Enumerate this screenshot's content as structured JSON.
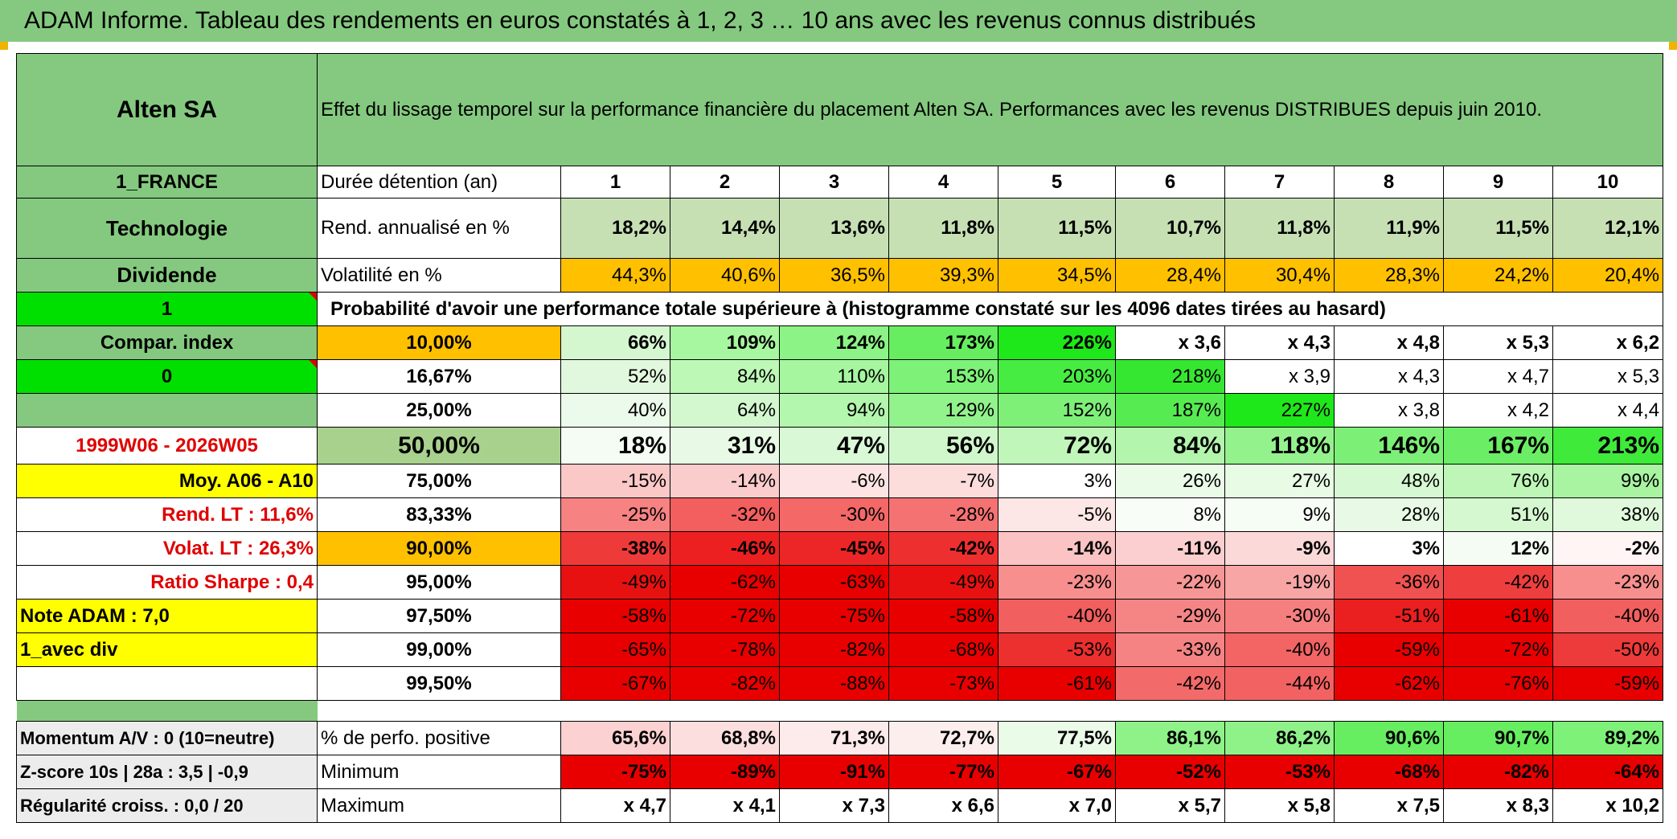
{
  "header": {
    "title": "ADAM Informe. Tableau des rendements en euros constatés à 1, 2, 3 … 10 ans avec les revenus connus distribués"
  },
  "side": {
    "company": "Alten SA",
    "country": "1_FRANCE",
    "sector": "Technologie",
    "dividend": "Dividende",
    "one": "1",
    "compar": "Compar. index",
    "zero": "0",
    "period": "1999W06 - 2026W05",
    "moy": "Moy. A06 - A10",
    "rend_lt": "Rend. LT :   11,6%",
    "volat_lt": "Volat. LT :   26,3%",
    "sharpe": "Ratio Sharpe :    0,4",
    "note": "Note ADAM : 7,0",
    "avec_div": "1_avec div",
    "momentum": "Momentum A/V : 0 (10=neutre)",
    "zscore": "Z-score 10s | 28a : 3,5 | -0,9",
    "regularite": "Régularité croiss. : 0,0 / 20"
  },
  "main": {
    "description": "Effet du lissage temporel sur la performance financière du placement Alten SA. Performances avec les revenus DISTRIBUES depuis juin 2010.",
    "duree_label": "Durée détention (an)",
    "durations": [
      "1",
      "2",
      "3",
      "4",
      "5",
      "6",
      "7",
      "8",
      "9",
      "10"
    ],
    "rend_label": "Rend. annualisé en %",
    "rend_values": [
      "18,2%",
      "14,4%",
      "13,6%",
      "11,8%",
      "11,5%",
      "10,7%",
      "11,8%",
      "11,9%",
      "11,5%",
      "12,1%"
    ],
    "vol_label": "Volatilité en %",
    "vol_values": [
      "44,3%",
      "40,6%",
      "36,5%",
      "39,3%",
      "34,5%",
      "28,4%",
      "30,4%",
      "28,3%",
      "24,2%",
      "20,4%"
    ],
    "proba_label": "Probabilité d'avoir une performance totale supérieure à (histogramme constaté sur les 4096 dates tirées au hasard)",
    "quantiles": [
      {
        "p": "10,00%",
        "values": [
          "66%",
          "109%",
          "124%",
          "173%",
          "226%",
          "x 3,6",
          "x 4,3",
          "x 4,8",
          "x 5,3",
          "x 6,2"
        ],
        "colors": [
          "#d4f7d0",
          "#a7f7a0",
          "#8cf386",
          "#66ee60",
          "#1fe81a",
          "#ffffff",
          "#ffffff",
          "#ffffff",
          "#ffffff",
          "#ffffff"
        ]
      },
      {
        "p": "16,67%",
        "values": [
          "52%",
          "84%",
          "110%",
          "153%",
          "203%",
          "218%",
          "x 3,9",
          "x 4,3",
          "x 4,7",
          "x 5,3"
        ],
        "colors": [
          "#e2f8de",
          "#bdf8b6",
          "#a5f69f",
          "#7ef178",
          "#47ec42",
          "#35e731",
          "#ffffff",
          "#ffffff",
          "#ffffff",
          "#ffffff"
        ]
      },
      {
        "p": "25,00%",
        "values": [
          "40%",
          "64%",
          "94%",
          "129%",
          "152%",
          "187%",
          "227%",
          "x 3,8",
          "x 4,2",
          "x 4,4"
        ],
        "colors": [
          "#ebfaea",
          "#d3f7cf",
          "#b3f6ad",
          "#92f28c",
          "#7ef078",
          "#56ec51",
          "#1fe81a",
          "#ffffff",
          "#ffffff",
          "#ffffff"
        ]
      },
      {
        "p": "50,00%",
        "values": [
          "18%",
          "31%",
          "47%",
          "56%",
          "72%",
          "84%",
          "118%",
          "146%",
          "167%",
          "213%"
        ],
        "colors": [
          "#f4fcf3",
          "#e8fae6",
          "#d9f8d5",
          "#d0f7cb",
          "#c0f6b9",
          "#b3f5ac",
          "#94f28d",
          "#7cf076",
          "#6bee65",
          "#3fea3a"
        ]
      },
      {
        "p": "75,00%",
        "values": [
          "-15%",
          "-14%",
          "-6%",
          "-7%",
          "3%",
          "26%",
          "27%",
          "48%",
          "76%",
          "99%"
        ],
        "colors": [
          "#fbc8c8",
          "#fbcccc",
          "#fde3e3",
          "#fddcdc",
          "#ffffff",
          "#eafbe8",
          "#e7fbe5",
          "#d6f8d2",
          "#bdf6b6",
          "#a8f4a1"
        ]
      },
      {
        "p": "83,33%",
        "values": [
          "-25%",
          "-32%",
          "-30%",
          "-28%",
          "-5%",
          "8%",
          "9%",
          "28%",
          "51%",
          "38%"
        ],
        "colors": [
          "#f78282",
          "#f35e5e",
          "#f46868",
          "#f57272",
          "#fde6e6",
          "#f8fdf8",
          "#f6fdf5",
          "#e8fae6",
          "#d5f8d1",
          "#e0f9dc"
        ]
      },
      {
        "p": "90,00%",
        "values": [
          "-38%",
          "-46%",
          "-45%",
          "-42%",
          "-14%",
          "-11%",
          "-9%",
          "3%",
          "12%",
          "-2%"
        ],
        "colors": [
          "#ef3a3a",
          "#ec2020",
          "#ec2626",
          "#ed2f2f",
          "#fbc3c3",
          "#fbcfcf",
          "#fcd9d9",
          "#ffffff",
          "#f4fcf3",
          "#fff5f5"
        ]
      },
      {
        "p": "95,00%",
        "values": [
          "-49%",
          "-62%",
          "-63%",
          "-49%",
          "-23%",
          "-22%",
          "-19%",
          "-36%",
          "-42%",
          "-23%"
        ],
        "colors": [
          "#e81111",
          "#e80000",
          "#e80000",
          "#e81111",
          "#f78f8f",
          "#f79696",
          "#f8a5a5",
          "#f05252",
          "#ef3e3e",
          "#f78f8f"
        ]
      },
      {
        "p": "97,50%",
        "values": [
          "-58%",
          "-72%",
          "-75%",
          "-58%",
          "-40%",
          "-29%",
          "-30%",
          "-51%",
          "-61%",
          "-40%"
        ],
        "colors": [
          "#e80000",
          "#e80000",
          "#e80000",
          "#e80000",
          "#f25f5f",
          "#f58585",
          "#f57f7f",
          "#ea1f1f",
          "#e80000",
          "#f25f5f"
        ]
      },
      {
        "p": "99,00%",
        "values": [
          "-65%",
          "-78%",
          "-82%",
          "-68%",
          "-53%",
          "-33%",
          "-40%",
          "-59%",
          "-72%",
          "-50%"
        ],
        "colors": [
          "#e80000",
          "#e80000",
          "#e80000",
          "#e80000",
          "#ec2f2f",
          "#f58383",
          "#f36464",
          "#e80000",
          "#e80000",
          "#ed3a3a"
        ]
      },
      {
        "p": "99,50%",
        "values": [
          "-67%",
          "-82%",
          "-88%",
          "-73%",
          "-61%",
          "-42%",
          "-44%",
          "-62%",
          "-76%",
          "-59%"
        ],
        "colors": [
          "#e80000",
          "#e80000",
          "#e80000",
          "#e80000",
          "#e80000",
          "#f36a6a",
          "#f26262",
          "#e80000",
          "#e80000",
          "#e80000"
        ]
      }
    ],
    "pos_label": "% de perfo. positive",
    "pos_values": [
      "65,6%",
      "68,8%",
      "71,3%",
      "72,7%",
      "77,5%",
      "86,1%",
      "86,2%",
      "90,6%",
      "90,7%",
      "89,2%"
    ],
    "pos_colors": [
      "#fbd1d1",
      "#fddede",
      "#fdeaea",
      "#fdeeee",
      "#eafbe8",
      "#8ef288",
      "#8ef288",
      "#66ee60",
      "#66ee60",
      "#7ef178"
    ],
    "min_label": "Minimum",
    "min_values": [
      "-75%",
      "-89%",
      "-91%",
      "-77%",
      "-67%",
      "-52%",
      "-53%",
      "-68%",
      "-82%",
      "-64%"
    ],
    "max_label": "Maximum",
    "max_values": [
      "x 4,7",
      "x 4,1",
      "x 7,3",
      "x 6,6",
      "x 7,0",
      "x 5,7",
      "x 5,8",
      "x 7,5",
      "x 8,3",
      "x 10,2"
    ],
    "colors": {
      "header_green": "#84c97f",
      "lime": "#00e000",
      "yellow": "#ffff00",
      "orange": "#ffc000",
      "rend_bg": "#c6e0b4",
      "red_text": "#e00000"
    }
  }
}
